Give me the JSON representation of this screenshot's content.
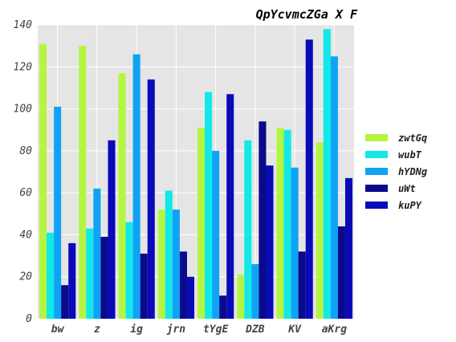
{
  "chart_data": {
    "type": "bar",
    "title": "QpYcvmcZGa X F",
    "xlabel": "",
    "ylabel": "",
    "categories": [
      "bw",
      "z",
      "ig",
      "jrn",
      "tYgE",
      "DZB",
      "KV",
      "aKrg"
    ],
    "ylim": [
      0,
      140
    ],
    "yticks": [
      0,
      20,
      40,
      60,
      80,
      100,
      120,
      140
    ],
    "grid": true,
    "legend_position": "right",
    "series": [
      {
        "name": "zwtGq",
        "color": "#b5f542",
        "values": [
          131,
          130,
          117,
          52,
          91,
          21,
          91,
          84
        ]
      },
      {
        "name": "wubT",
        "color": "#12e8e8",
        "values": [
          41,
          43,
          46,
          61,
          108,
          85,
          90,
          138
        ]
      },
      {
        "name": "hYDNg",
        "color": "#0fa3f5",
        "values": [
          101,
          62,
          126,
          52,
          80,
          26,
          72,
          125
        ]
      },
      {
        "name": "uWt",
        "color": "#0a0a8c",
        "values": [
          16,
          39,
          31,
          32,
          11,
          94,
          32,
          44
        ]
      },
      {
        "name": "kuPY",
        "color": "#0a0ab8",
        "values": [
          36,
          85,
          114,
          20,
          107,
          73,
          133,
          67
        ]
      }
    ]
  }
}
